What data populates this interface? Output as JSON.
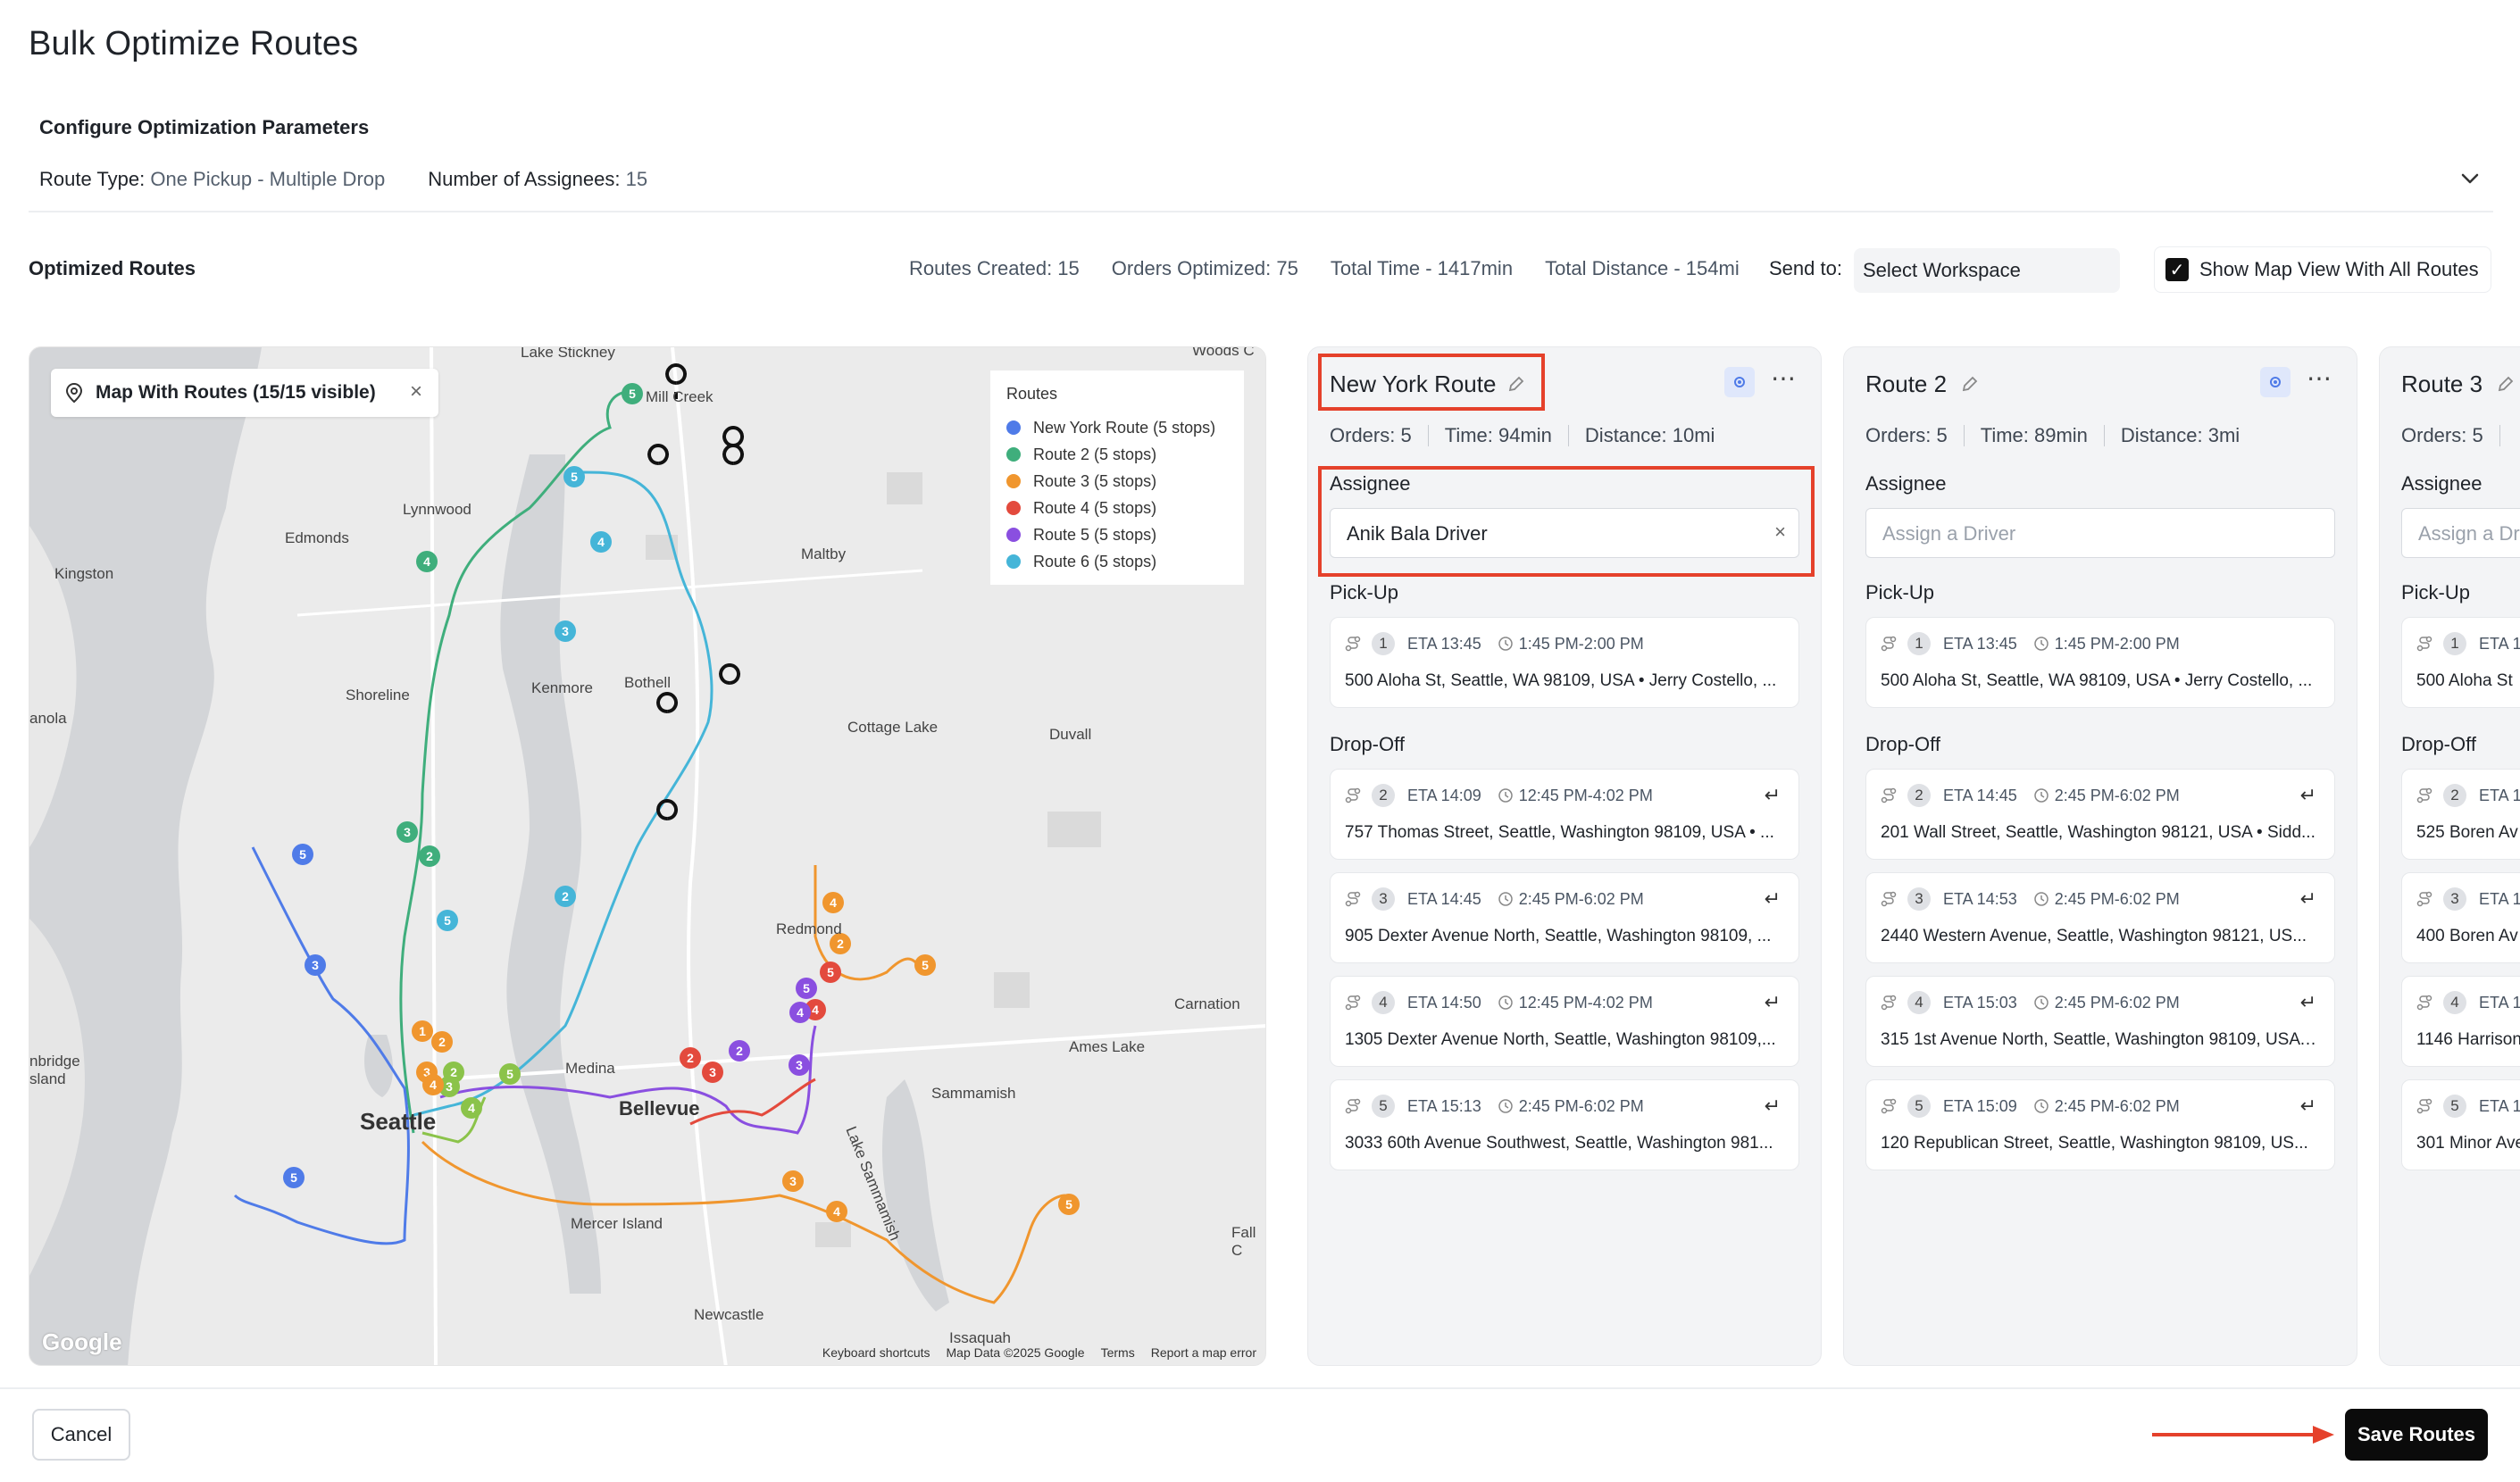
{
  "page_title": "Bulk Optimize Routes",
  "config": {
    "title": "Configure Optimization Parameters",
    "route_type_label": "Route Type:",
    "route_type_value": "One Pickup - Multiple Drop",
    "assignees_label": "Number of Assignees:",
    "assignees_value": "15"
  },
  "optimized": {
    "title": "Optimized Routes",
    "routes_created": "Routes Created: 15",
    "orders_optimized": "Orders Optimized: 75",
    "total_time": "Total Time - 1417min",
    "total_distance": "Total Distance - 154mi",
    "send_to_label": "Send to:",
    "select_value": "Select Workspace",
    "show_map_label": "Show Map View With All Routes",
    "show_map_checked": true
  },
  "map": {
    "tag": "Map With Routes (15/15 visible)",
    "legend_title": "Routes",
    "legend": [
      {
        "label": "New York Route (5 stops)",
        "color": "#4f7be8"
      },
      {
        "label": "Route 2 (5 stops)",
        "color": "#3fae7c"
      },
      {
        "label": "Route 3 (5 stops)",
        "color": "#f0962e"
      },
      {
        "label": "Route 4 (5 stops)",
        "color": "#e34a3d"
      },
      {
        "label": "Route 5 (5 stops)",
        "color": "#8a4fe0"
      },
      {
        "label": "Route 6 (5 stops)",
        "color": "#45b5d8"
      }
    ],
    "places": {
      "lake_stickney": "Lake Stickney",
      "mill_creek": "Mill Creek",
      "lynnwood": "Lynnwood",
      "edmonds": "Edmonds",
      "kingston": "Kingston",
      "maltby": "Maltby",
      "shoreline": "Shoreline",
      "kenmore": "Kenmore",
      "bothell": "Bothell",
      "anola": "anola",
      "cottage_lake": "Cottage Lake",
      "duvall": "Duvall",
      "redmond": "Redmond",
      "carnation": "Carnation",
      "ames_lake": "Ames Lake",
      "medina": "Medina",
      "bellevue": "Bellevue",
      "sammamish": "Sammamish",
      "lake_sammamish": "Lake Sammamish",
      "bainbridge": "nbridge",
      "island": "sland",
      "seattle": "Seattle",
      "mercer_island": "Mercer Island",
      "newcastle": "Newcastle",
      "issaquah": "Issaquah",
      "fall_city": "Fall C",
      "woods": "Woods C"
    },
    "attribution": {
      "shortcuts": "Keyboard shortcuts",
      "data": "Map Data ©2025 Google",
      "terms": "Terms",
      "report": "Report a map error",
      "logo": "Google"
    }
  },
  "routes": [
    {
      "name": "New York Route",
      "orders": "Orders: 5",
      "time": "Time: 94min",
      "distance": "Distance: 10mi",
      "assignee_label": "Assignee",
      "assignee_value": "Anik Bala Driver",
      "pickup_label": "Pick-Up",
      "pickup": {
        "num": "1",
        "eta": "ETA 13:45",
        "window": "1:45 PM-2:00 PM",
        "address": "500 Aloha St, Seattle, WA 98109, USA • Jerry Costello, ..."
      },
      "dropoff_label": "Drop-Off",
      "dropoffs": [
        {
          "num": "2",
          "eta": "ETA 14:09",
          "window": "12:45 PM-4:02 PM",
          "address": "757 Thomas Street, Seattle, Washington 98109, USA • ..."
        },
        {
          "num": "3",
          "eta": "ETA 14:45",
          "window": "2:45 PM-6:02 PM",
          "address": "905 Dexter Avenue North, Seattle, Washington 98109, ..."
        },
        {
          "num": "4",
          "eta": "ETA 14:50",
          "window": "12:45 PM-4:02 PM",
          "address": "1305 Dexter Avenue North, Seattle, Washington 98109,..."
        },
        {
          "num": "5",
          "eta": "ETA 15:13",
          "window": "2:45 PM-6:02 PM",
          "address": "3033 60th Avenue Southwest, Seattle, Washington 981..."
        }
      ]
    },
    {
      "name": "Route 2",
      "orders": "Orders: 5",
      "time": "Time: 89min",
      "distance": "Distance: 3mi",
      "assignee_label": "Assignee",
      "assignee_placeholder": "Assign a Driver",
      "pickup_label": "Pick-Up",
      "pickup": {
        "num": "1",
        "eta": "ETA 13:45",
        "window": "1:45 PM-2:00 PM",
        "address": "500 Aloha St, Seattle, WA 98109, USA • Jerry Costello, ..."
      },
      "dropoff_label": "Drop-Off",
      "dropoffs": [
        {
          "num": "2",
          "eta": "ETA 14:45",
          "window": "2:45 PM-6:02 PM",
          "address": "201 Wall Street, Seattle, Washington 98121, USA • Sidd..."
        },
        {
          "num": "3",
          "eta": "ETA 14:53",
          "window": "2:45 PM-6:02 PM",
          "address": "2440 Western Avenue, Seattle, Washington 98121, US..."
        },
        {
          "num": "4",
          "eta": "ETA 15:03",
          "window": "2:45 PM-6:02 PM",
          "address": "315 1st Avenue North, Seattle, Washington 98109, USA ..."
        },
        {
          "num": "5",
          "eta": "ETA 15:09",
          "window": "2:45 PM-6:02 PM",
          "address": "120 Republican Street, Seattle, Washington 98109, US..."
        }
      ]
    },
    {
      "name": "Route 3",
      "orders": "Orders: 5",
      "assignee_label": "Assignee",
      "assignee_placeholder": "Assign a Dr",
      "pickup_label": "Pick-Up",
      "pickup": {
        "num": "1",
        "eta": "ETA 1",
        "address": "500 Aloha St"
      },
      "dropoff_label": "Drop-Off",
      "dropoffs": [
        {
          "num": "2",
          "eta": "ETA 1",
          "address": "525 Boren Av"
        },
        {
          "num": "3",
          "eta": "ETA 1",
          "address": "400 Boren Av"
        },
        {
          "num": "4",
          "eta": "ETA 1",
          "address": "1146 Harrison"
        },
        {
          "num": "5",
          "eta": "ETA 1",
          "address": "301 Minor Ave"
        }
      ]
    }
  ],
  "footer": {
    "cancel": "Cancel",
    "save": "Save Routes"
  },
  "colors": {
    "highlight": "#e5412b",
    "primary_button": "#0b0b0b"
  }
}
